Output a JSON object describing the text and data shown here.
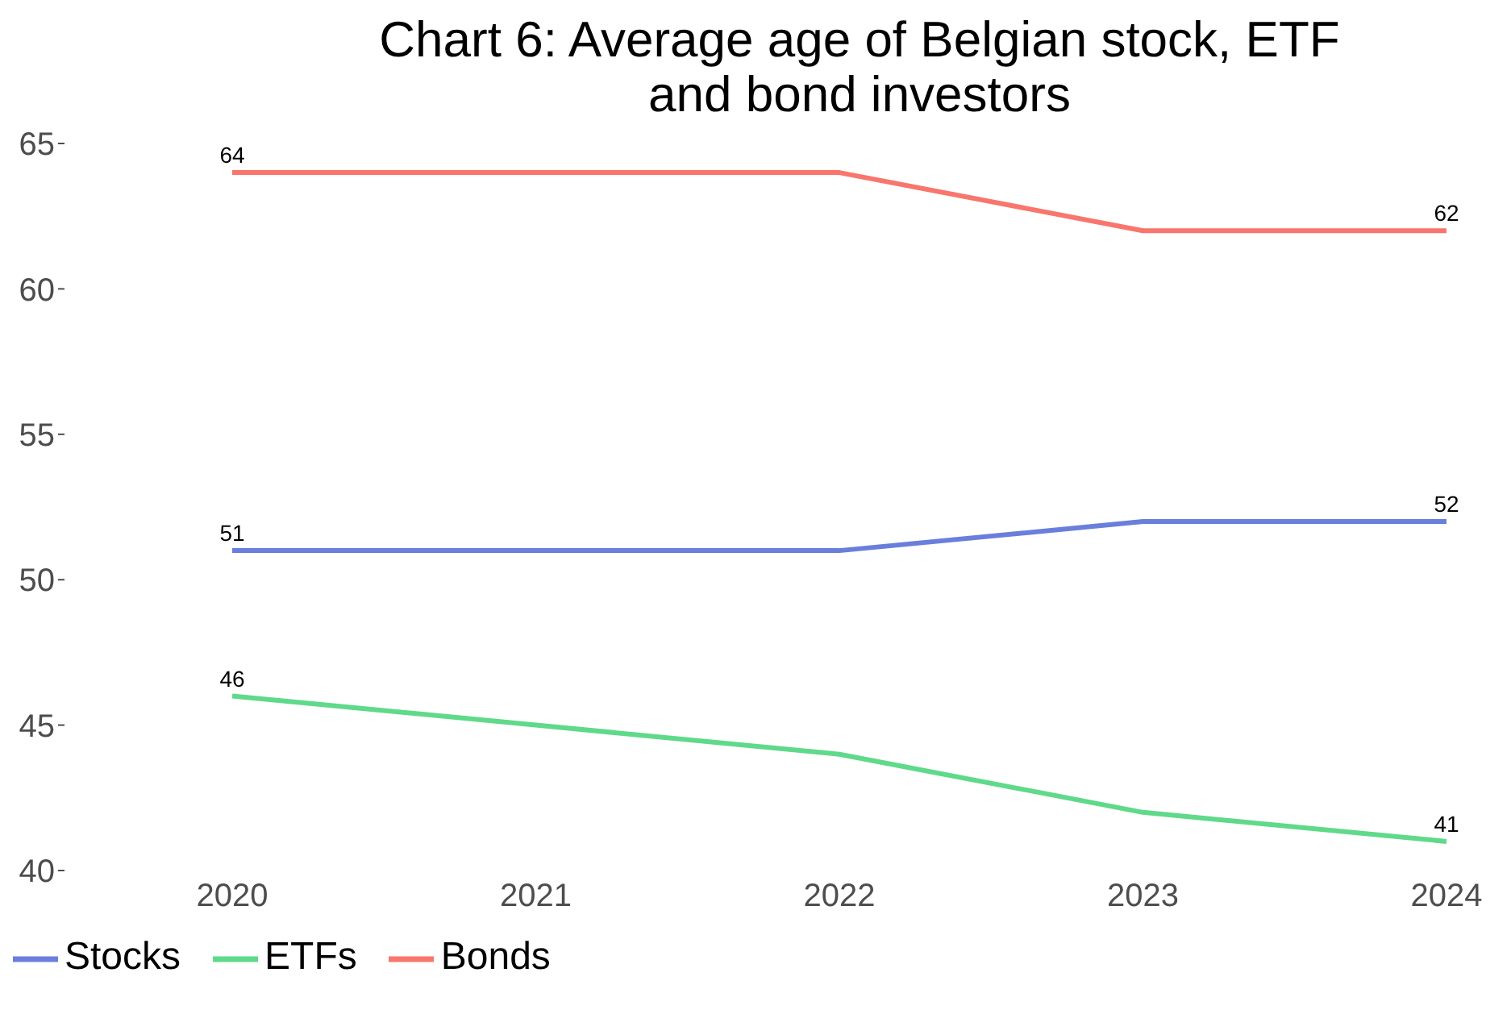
{
  "chart_data": {
    "type": "line",
    "title": "Chart 6: Average age of Belgian stock, ETF and bond investors",
    "categories": [
      "2020",
      "2021",
      "2022",
      "2023",
      "2024"
    ],
    "series": [
      {
        "name": "Stocks",
        "color": "#6a7fdb",
        "values": [
          51,
          51,
          51,
          52,
          52
        ],
        "value_labels": [
          "51",
          null,
          null,
          null,
          "52"
        ]
      },
      {
        "name": "ETFs",
        "color": "#5fd98a",
        "values": [
          46,
          45,
          44,
          42,
          41
        ],
        "value_labels": [
          "46",
          null,
          null,
          null,
          "41"
        ]
      },
      {
        "name": "Bonds",
        "color": "#f8766d",
        "values": [
          64,
          64,
          64,
          62,
          62
        ],
        "value_labels": [
          "64",
          null,
          null,
          null,
          "62"
        ]
      }
    ],
    "ylim": [
      40,
      65
    ],
    "yticks": [
      40,
      45,
      50,
      55,
      60,
      65
    ],
    "grid": false,
    "legend": "bottom left",
    "marker": "none",
    "line_style": "solid"
  }
}
